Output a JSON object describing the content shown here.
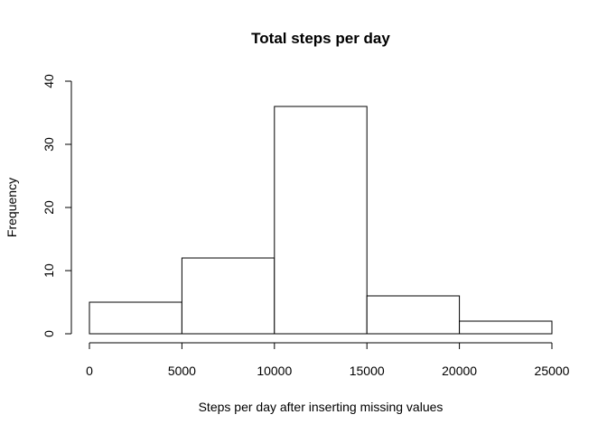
{
  "chart_data": {
    "type": "bar",
    "title": "Total steps per day",
    "xlabel": "Steps per day after inserting missing values",
    "ylabel": "Frequency",
    "bins": [
      {
        "from": 0,
        "to": 5000,
        "value": 5
      },
      {
        "from": 5000,
        "to": 10000,
        "value": 12
      },
      {
        "from": 10000,
        "to": 15000,
        "value": 36
      },
      {
        "from": 15000,
        "to": 20000,
        "value": 6
      },
      {
        "from": 20000,
        "to": 25000,
        "value": 2
      }
    ],
    "xlim": [
      0,
      25000
    ],
    "ylim": [
      0,
      40
    ],
    "xticks": [
      0,
      5000,
      10000,
      15000,
      20000,
      25000
    ],
    "yticks": [
      0,
      10,
      20,
      30,
      40
    ],
    "grid": false,
    "bar_fill": "#ffffff",
    "bar_stroke": "#000000"
  }
}
